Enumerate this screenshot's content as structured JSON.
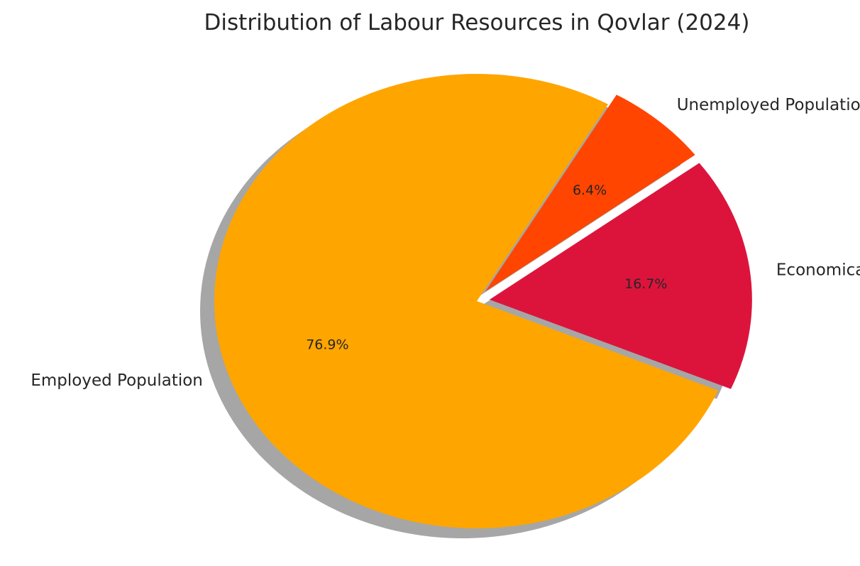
{
  "chart_data": {
    "type": "pie",
    "title": "Distribution of Labour Resources in Qovlar (2024)",
    "categories": [
      "Employed Population",
      "Economically Inactive Population",
      "Unemployed Population"
    ],
    "values": [
      76.9,
      16.7,
      6.4
    ],
    "labels": [
      "76.9%",
      "16.7%",
      "6.4%"
    ],
    "colors": [
      "#FFA500",
      "#DC143C",
      "#FF4500"
    ],
    "exploded": [
      false,
      true,
      true
    ],
    "shadow": true,
    "start_angle_deg": 60,
    "direction": "counterclockwise"
  }
}
